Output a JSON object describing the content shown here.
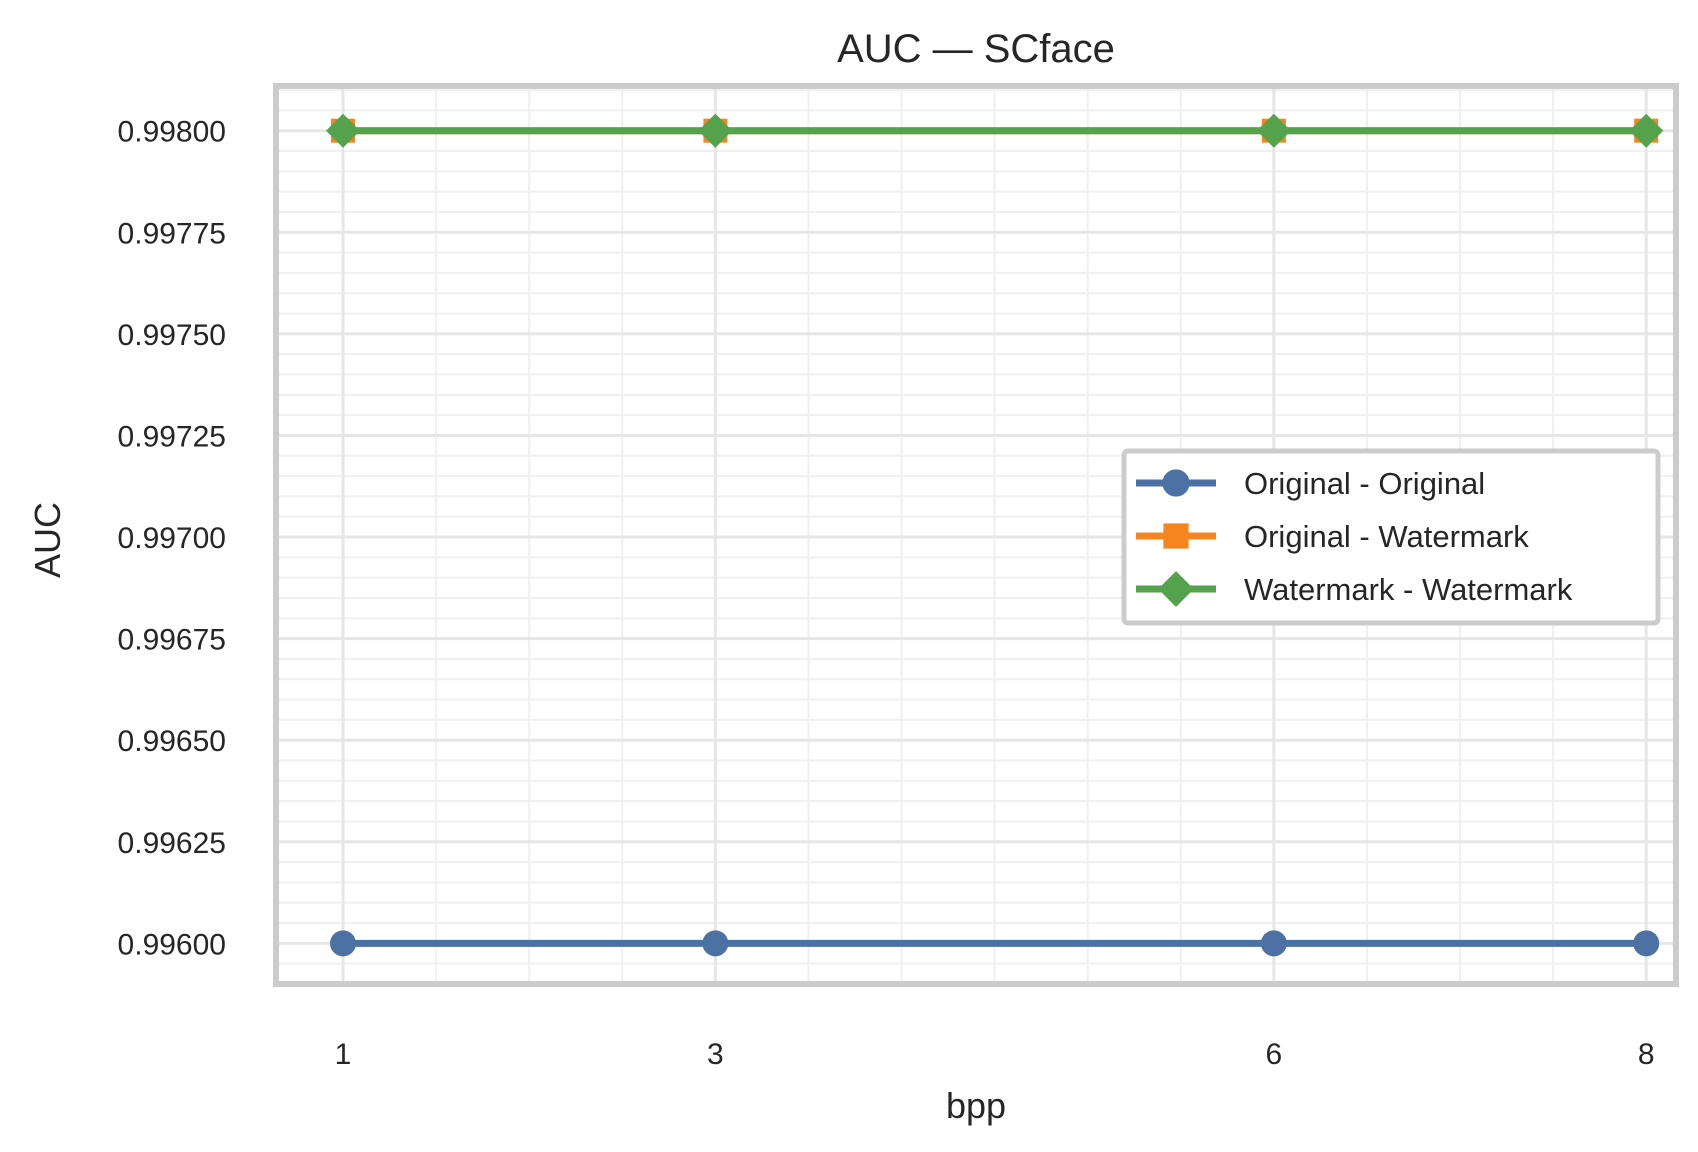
{
  "chart_data": {
    "type": "line",
    "title": "AUC — SCface",
    "xlabel": "bpp",
    "ylabel": "AUC",
    "x": [
      1,
      3,
      6,
      8
    ],
    "x_tick_labels": [
      "1",
      "3",
      "6",
      "8"
    ],
    "y_tick_values": [
      0.996,
      0.99625,
      0.9965,
      0.99675,
      0.997,
      0.99725,
      0.9975,
      0.99775,
      0.998
    ],
    "y_tick_labels": [
      "0.99600",
      "0.99625",
      "0.99650",
      "0.99675",
      "0.99700",
      "0.99725",
      "0.99750",
      "0.99775",
      "0.99800"
    ],
    "xlim": [
      0.64,
      8.16
    ],
    "ylim": [
      0.9959,
      0.99811
    ],
    "grid": true,
    "legend_position": "center-right",
    "series": [
      {
        "name": "Original - Original",
        "values": [
          0.996,
          0.996,
          0.996,
          0.996
        ],
        "color": "#4c72a4",
        "marker": "circle"
      },
      {
        "name": "Original - Watermark",
        "values": [
          0.998,
          0.998,
          0.998,
          0.998
        ],
        "color": "#f5851f",
        "marker": "square"
      },
      {
        "name": "Watermark - Watermark",
        "values": [
          0.998,
          0.998,
          0.998,
          0.998
        ],
        "color": "#54a24b",
        "marker": "diamond"
      }
    ]
  }
}
